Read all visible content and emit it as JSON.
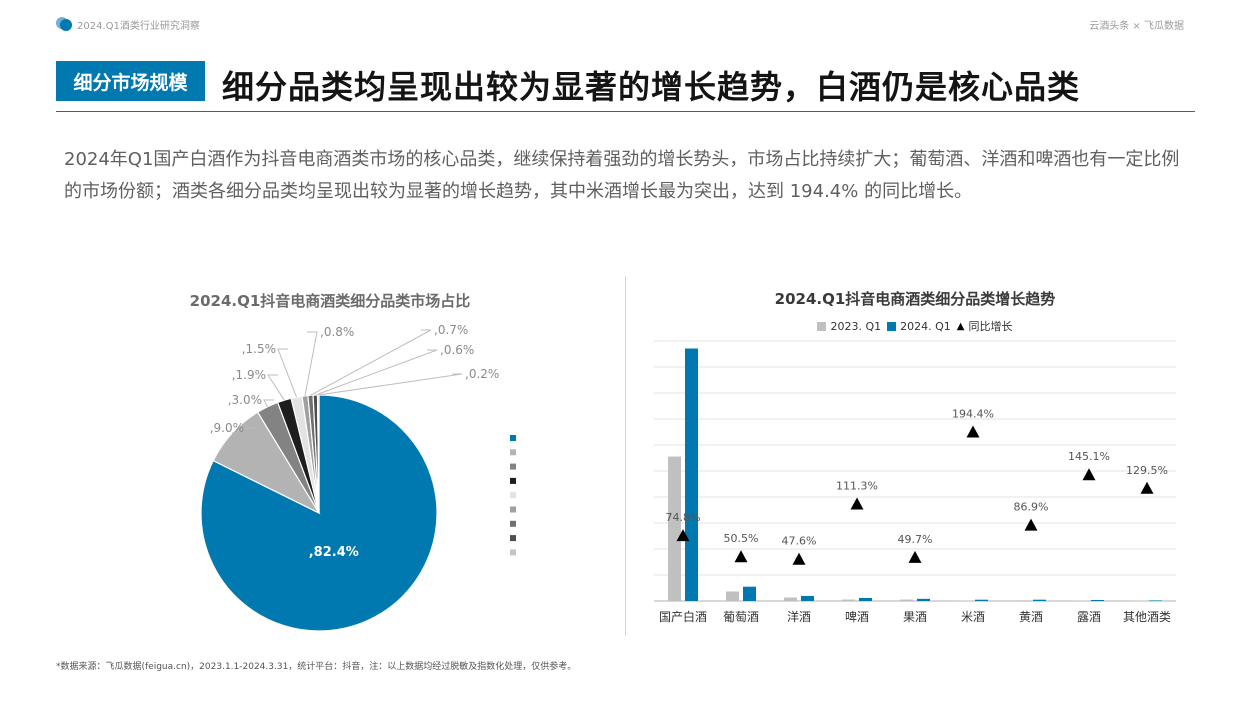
{
  "header": {
    "report_label": "2024.Q1酒类行业研究洞察",
    "brand": "云酒头条 × 飞瓜数据",
    "tag": "细分市场规模",
    "headline": "细分品类均呈现出较为显著的增长趋势，白酒仍是核心品类"
  },
  "intro": "2024年Q1国产白酒作为抖音电商酒类市场的核心品类，继续保持着强劲的增长势头，市场占比持续扩大；葡萄酒、洋酒和啤酒也有一定比例的市场份额；酒类各细分品类均呈现出较为显著的增长趋势，其中米酒增长最为突出，达到 194.4% 的同比增长。",
  "footnote": "*数据来源：飞瓜数据(feigua.cn)，2023.1.1-2024.3.31，统计平台：抖音，注：以上数据均经过脱敏及指数化处理，仅供参考。",
  "chart_data": [
    {
      "type": "pie",
      "title": "2024.Q1抖音电商酒类细分品类市场占比",
      "slices": [
        {
          "label": ",82.4%",
          "value": 82.4,
          "color": "#0079b0"
        },
        {
          "label": ",9.0%",
          "value": 9.0,
          "color": "#b3b3b3"
        },
        {
          "label": ",3.0%",
          "value": 3.0,
          "color": "#838383"
        },
        {
          "label": ",1.9%",
          "value": 1.9,
          "color": "#1e1e1e"
        },
        {
          "label": ",1.5%",
          "value": 1.5,
          "color": "#e3e3e3"
        },
        {
          "label": ",0.8%",
          "value": 0.8,
          "color": "#a0a0a0"
        },
        {
          "label": ",0.7%",
          "value": 0.7,
          "color": "#707070"
        },
        {
          "label": ",0.6%",
          "value": 0.6,
          "color": "#4e4e4e"
        },
        {
          "label": ",0.2%",
          "value": 0.2,
          "color": "#c4c4c4"
        }
      ],
      "legend": "right (swatches only, no labels)"
    },
    {
      "type": "bar",
      "title": "2024.Q1抖音电商酒类细分品类增长趋势",
      "categories": [
        "国产白酒",
        "葡萄酒",
        "洋酒",
        "啤酒",
        "果酒",
        "米酒",
        "黄酒",
        "露酒",
        "其他酒类"
      ],
      "series": [
        {
          "name": "2023. Q1",
          "color": "#c0c0c0",
          "values": [
            100,
            6.6,
            2.4,
            1.0,
            1.0,
            0.3,
            0.5,
            0.3,
            0.2
          ]
        },
        {
          "name": "2024. Q1",
          "color": "#0079b0",
          "values": [
            174.8,
            9.9,
            3.5,
            2.1,
            1.5,
            0.9,
            0.9,
            0.7,
            0.4
          ]
        }
      ],
      "growth": {
        "name": "同比增长",
        "marker": "triangle",
        "values": [
          74.8,
          50.5,
          47.6,
          111.3,
          49.7,
          194.4,
          86.9,
          145.1,
          129.5
        ],
        "labels": [
          "74.8%",
          "50.5%",
          "47.6%",
          "111.3%",
          "49.7%",
          "194.4%",
          "86.9%",
          "145.1%",
          "129.5%"
        ]
      },
      "ylim": [
        0,
        180
      ],
      "growth_ylim": [
        0,
        300
      ],
      "grid": true
    }
  ]
}
